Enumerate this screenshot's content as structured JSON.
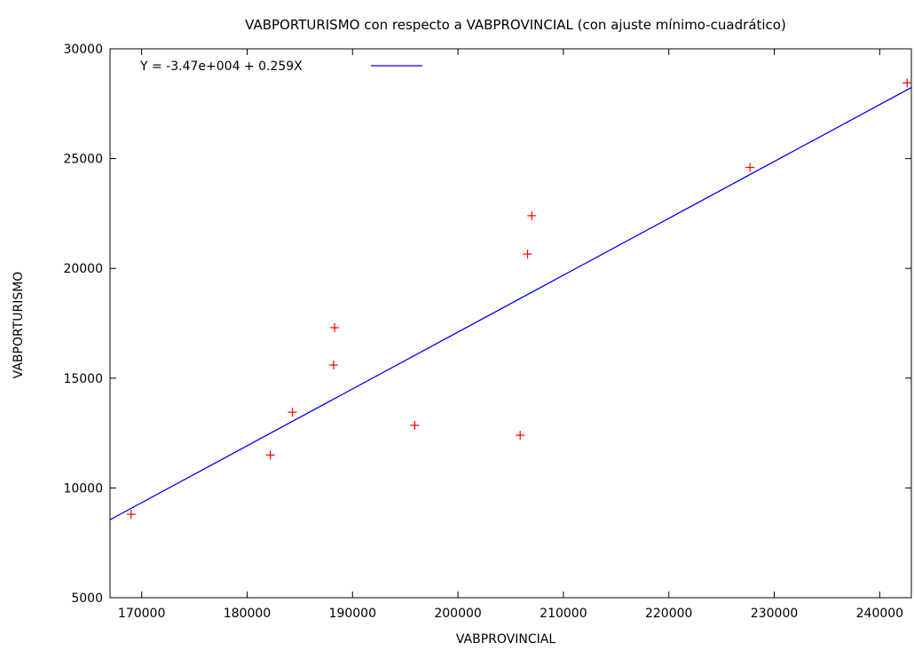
{
  "chart_data": {
    "type": "scatter",
    "title": "VABPORTURISMO con respecto a VABPROVINCIAL (con ajuste mínimo-cuadrático)",
    "xlabel": "VABPROVINCIAL",
    "ylabel": "VABPORTURISMO",
    "xlim": [
      167000,
      243000
    ],
    "ylim": [
      5000,
      30000
    ],
    "xticks": [
      170000,
      180000,
      190000,
      200000,
      210000,
      220000,
      230000,
      240000
    ],
    "yticks": [
      5000,
      10000,
      15000,
      20000,
      25000,
      30000
    ],
    "grid": false,
    "legend_position": "top-left",
    "series": [
      {
        "kind": "points",
        "marker": "plus",
        "color": "#ff0000",
        "points": [
          {
            "x": 169000,
            "y": 8800
          },
          {
            "x": 182200,
            "y": 11500
          },
          {
            "x": 184300,
            "y": 13450
          },
          {
            "x": 188200,
            "y": 15600
          },
          {
            "x": 188300,
            "y": 17300
          },
          {
            "x": 195900,
            "y": 12850
          },
          {
            "x": 205900,
            "y": 12400
          },
          {
            "x": 206600,
            "y": 20650
          },
          {
            "x": 207000,
            "y": 22400
          },
          {
            "x": 227700,
            "y": 24600
          },
          {
            "x": 242600,
            "y": 28450
          }
        ]
      },
      {
        "kind": "fit_line",
        "name": "Y = -3.47e+004 + 0.259X",
        "color": "#0000ff",
        "intercept": -34700,
        "slope": 0.259
      }
    ]
  }
}
